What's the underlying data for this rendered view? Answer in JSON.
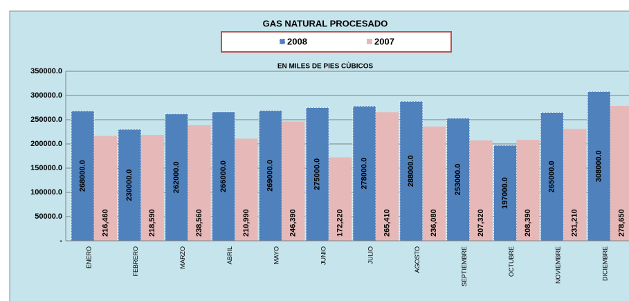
{
  "chart_data": {
    "type": "bar",
    "title": "GAS NATURAL PROCESADO",
    "subtitle": "EN  MILES DE PIES CÙBICOS",
    "categories": [
      "ENERO",
      "FEBRERO",
      "MARZO",
      "ABRIL",
      "MAYO",
      "JUNIO",
      "JULIO",
      "AGOSTO",
      "SEPTIEMBRE",
      "OCTUBRE",
      "NOVIEMBRE",
      "DICIEMBRE"
    ],
    "series": [
      {
        "name": "2008",
        "color": "#4f81bd",
        "values": [
          268000,
          230000,
          262000,
          266000,
          269000,
          275000,
          278000,
          288000,
          253000,
          197000,
          265000,
          308000
        ],
        "value_labels": [
          "268000.0",
          "230000.0",
          "262000.0",
          "266000.0",
          "269000.0",
          "275000.0",
          "278000.0",
          "288000.0",
          "253000.0",
          "197000.0",
          "265000.0",
          "308000.0"
        ]
      },
      {
        "name": "2007",
        "color": "#e6b9b8",
        "values": [
          216460,
          218590,
          238560,
          210990,
          246390,
          172220,
          265410,
          236080,
          207320,
          208390,
          231210,
          278650
        ],
        "value_labels": [
          "216,460",
          "218,590",
          "238,560",
          "210,990",
          "246,390",
          "172,220",
          "265,410",
          "236,080",
          "207,320",
          "208,390",
          "231,210",
          "278,650"
        ]
      }
    ],
    "ylim": [
      0,
      350000
    ],
    "yticks": [
      {
        "value": 0,
        "label": "-"
      },
      {
        "value": 50000,
        "label": "50000.0"
      },
      {
        "value": 100000,
        "label": "100000.0"
      },
      {
        "value": 150000,
        "label": "150000.0"
      },
      {
        "value": 200000,
        "label": "200000.0"
      },
      {
        "value": 250000,
        "label": "250000.0"
      },
      {
        "value": 300000,
        "label": "300000.0"
      },
      {
        "value": 350000,
        "label": "350000.0"
      }
    ],
    "grid": true,
    "legend": "top"
  }
}
